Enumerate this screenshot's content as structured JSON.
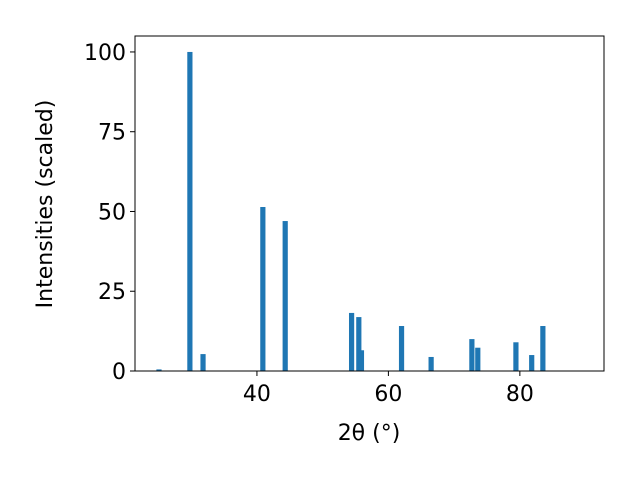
{
  "chart_data": {
    "type": "bar",
    "x_label": "2θ (°)",
    "y_label": "Intensities (scaled)",
    "x": [
      25.1,
      29.8,
      31.8,
      40.9,
      44.3,
      54.4,
      55.5,
      55.9,
      62.0,
      66.5,
      72.7,
      73.6,
      79.4,
      81.8,
      83.5
    ],
    "values": [
      0.5,
      100,
      5.3,
      51.4,
      47,
      18.2,
      16.9,
      6.5,
      14.1,
      4.4,
      10,
      7.3,
      9,
      5,
      14.1
    ],
    "color": "#1f77b4",
    "xlim": [
      21.45,
      92.8
    ],
    "ylim": [
      0,
      105
    ],
    "xticks": [
      40,
      60,
      80
    ],
    "yticks": [
      0,
      25,
      50,
      75,
      100
    ],
    "grid": false
  }
}
